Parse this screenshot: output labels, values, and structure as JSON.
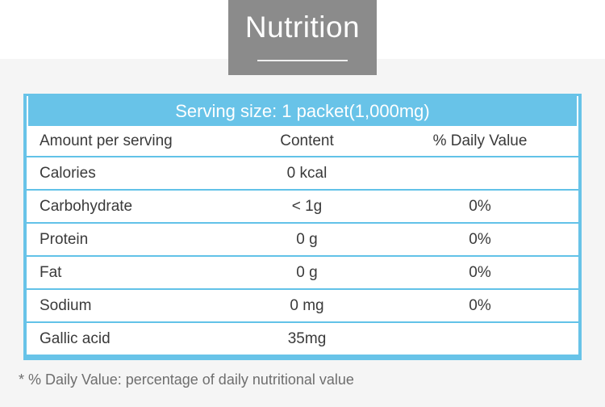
{
  "page": {
    "title": "Nutrition"
  },
  "table": {
    "serving_size": "Serving size: 1 packet(1,000mg)",
    "columns": {
      "name": "Amount per serving",
      "content": "Content",
      "daily_value": "% Daily Value"
    },
    "rows": [
      {
        "name": "Calories",
        "content": "0 kcal",
        "daily_value": ""
      },
      {
        "name": "Carbohydrate",
        "content": "< 1g",
        "daily_value": "0%"
      },
      {
        "name": "Protein",
        "content": "0 g",
        "daily_value": "0%"
      },
      {
        "name": "Fat",
        "content": "0 g",
        "daily_value": "0%"
      },
      {
        "name": "Sodium",
        "content": "0 mg",
        "daily_value": "0%"
      },
      {
        "name": "Gallic acid",
        "content": "35mg",
        "daily_value": ""
      }
    ]
  },
  "footnote": "* % Daily Value: percentage of daily nutritional value",
  "colors": {
    "accent_blue": "#68c3e8",
    "line_blue": "#62c2e8",
    "title_gray": "#8b8b8b",
    "page_bg": "#f5f5f5",
    "text_dark": "#3a3a3a",
    "text_gray": "#6e6e6e"
  }
}
